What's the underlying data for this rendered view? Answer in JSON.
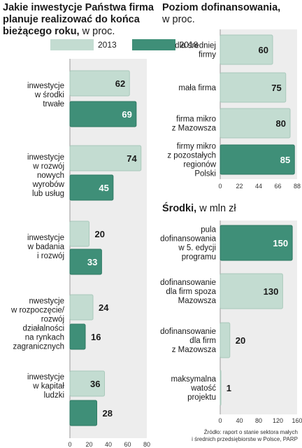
{
  "chart_data": [
    {
      "type": "bar",
      "orientation": "horizontal",
      "title": "Jakie inwestycje Państwa firma planuje realizować do końca bieżącego roku,",
      "subtitle": "w proc.",
      "categories": [
        [
          "inwestycje",
          "w środki",
          "trwałe"
        ],
        [
          "inwestycje",
          "w rozwój",
          "nowych",
          "wyrobów",
          "lub usług"
        ],
        [
          "inwestycje",
          "w badania",
          "i rozwój"
        ],
        [
          "nwestycje",
          "w rozpoczęcie/",
          "rozwój",
          "działalności",
          "na rynkach",
          "zagranicznych"
        ],
        [
          "inwestycje",
          "w kapitał",
          "ludzki"
        ]
      ],
      "series": [
        {
          "name": "2013",
          "values": [
            62,
            74,
            20,
            24,
            36
          ],
          "color": "#c3dcd1"
        },
        {
          "name": "2018",
          "values": [
            69,
            45,
            33,
            16,
            28
          ],
          "color": "#3f8f78"
        }
      ],
      "xlim": [
        0,
        80
      ],
      "ticks": [
        0,
        20,
        40,
        60,
        80
      ],
      "grid": false,
      "legend": "top"
    },
    {
      "type": "bar",
      "orientation": "horizontal",
      "title": "Poziom dofinansowania,",
      "subtitle": "w proc.",
      "categories": [
        [
          "dla średniej",
          "firmy"
        ],
        [
          "mała firma"
        ],
        [
          "firma mikro",
          "z Mazowsza"
        ],
        [
          "firmy mikro",
          "z pozostałych",
          "regionów",
          "Polski"
        ]
      ],
      "values": [
        60,
        75,
        80,
        85
      ],
      "colors": [
        "#c3dcd1",
        "#c3dcd1",
        "#c3dcd1",
        "#3f8f78"
      ],
      "xlim": [
        0,
        88
      ],
      "ticks": [
        0,
        22,
        44,
        66,
        88
      ]
    },
    {
      "type": "bar",
      "orientation": "horizontal",
      "title": "Środki,",
      "subtitle": "w mln zł",
      "categories": [
        [
          "pula",
          "dofinansowania",
          "w 5. edycji",
          "programu"
        ],
        [
          "dofinansowanie",
          "dla firm spoza",
          "Mazowsza"
        ],
        [
          "dofinansowanie",
          "dla firm",
          "z Mazowsza"
        ],
        [
          "maksymalna",
          "watość",
          "projektu"
        ]
      ],
      "values": [
        150,
        130,
        20,
        1
      ],
      "colors": [
        "#3f8f78",
        "#c3dcd1",
        "#c3dcd1",
        "#c3dcd1"
      ],
      "xlim": [
        0,
        160
      ],
      "ticks": [
        0,
        40,
        80,
        120,
        160
      ]
    }
  ],
  "source": [
    "Źródło: raport o stanie sektora małych",
    "i średnich przedsiębiorstw w Polsce, PARP"
  ]
}
